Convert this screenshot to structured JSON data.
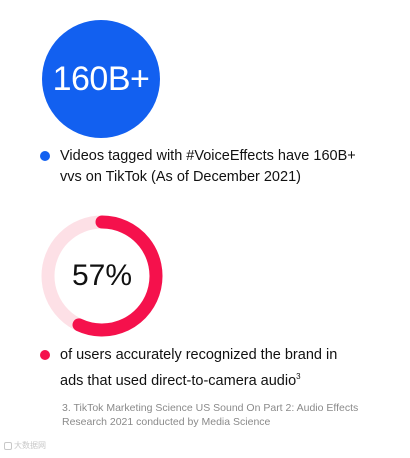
{
  "stat1": {
    "value_label": "160B+",
    "text": "Videos tagged with #VoiceEffects have 160B+ vvs on TikTok (As of December 2021)",
    "color": "#1260f0"
  },
  "stat2": {
    "value_label": "57%",
    "text_main": "of users accurately recognized the brand in ads that used direct-to-camera audio",
    "text_sup": "3",
    "color": "#f5114c",
    "track_color": "#fde0e6"
  },
  "chart_data": {
    "type": "pie",
    "categories": [
      "recognized the brand",
      ""
    ],
    "values": [
      57,
      43
    ],
    "title": "57%"
  },
  "footnote": "3. TikTok Marketing Science US Sound On Part 2: Audio Effects Research 2021 conducted by Media Science",
  "watermark": "大数据网"
}
